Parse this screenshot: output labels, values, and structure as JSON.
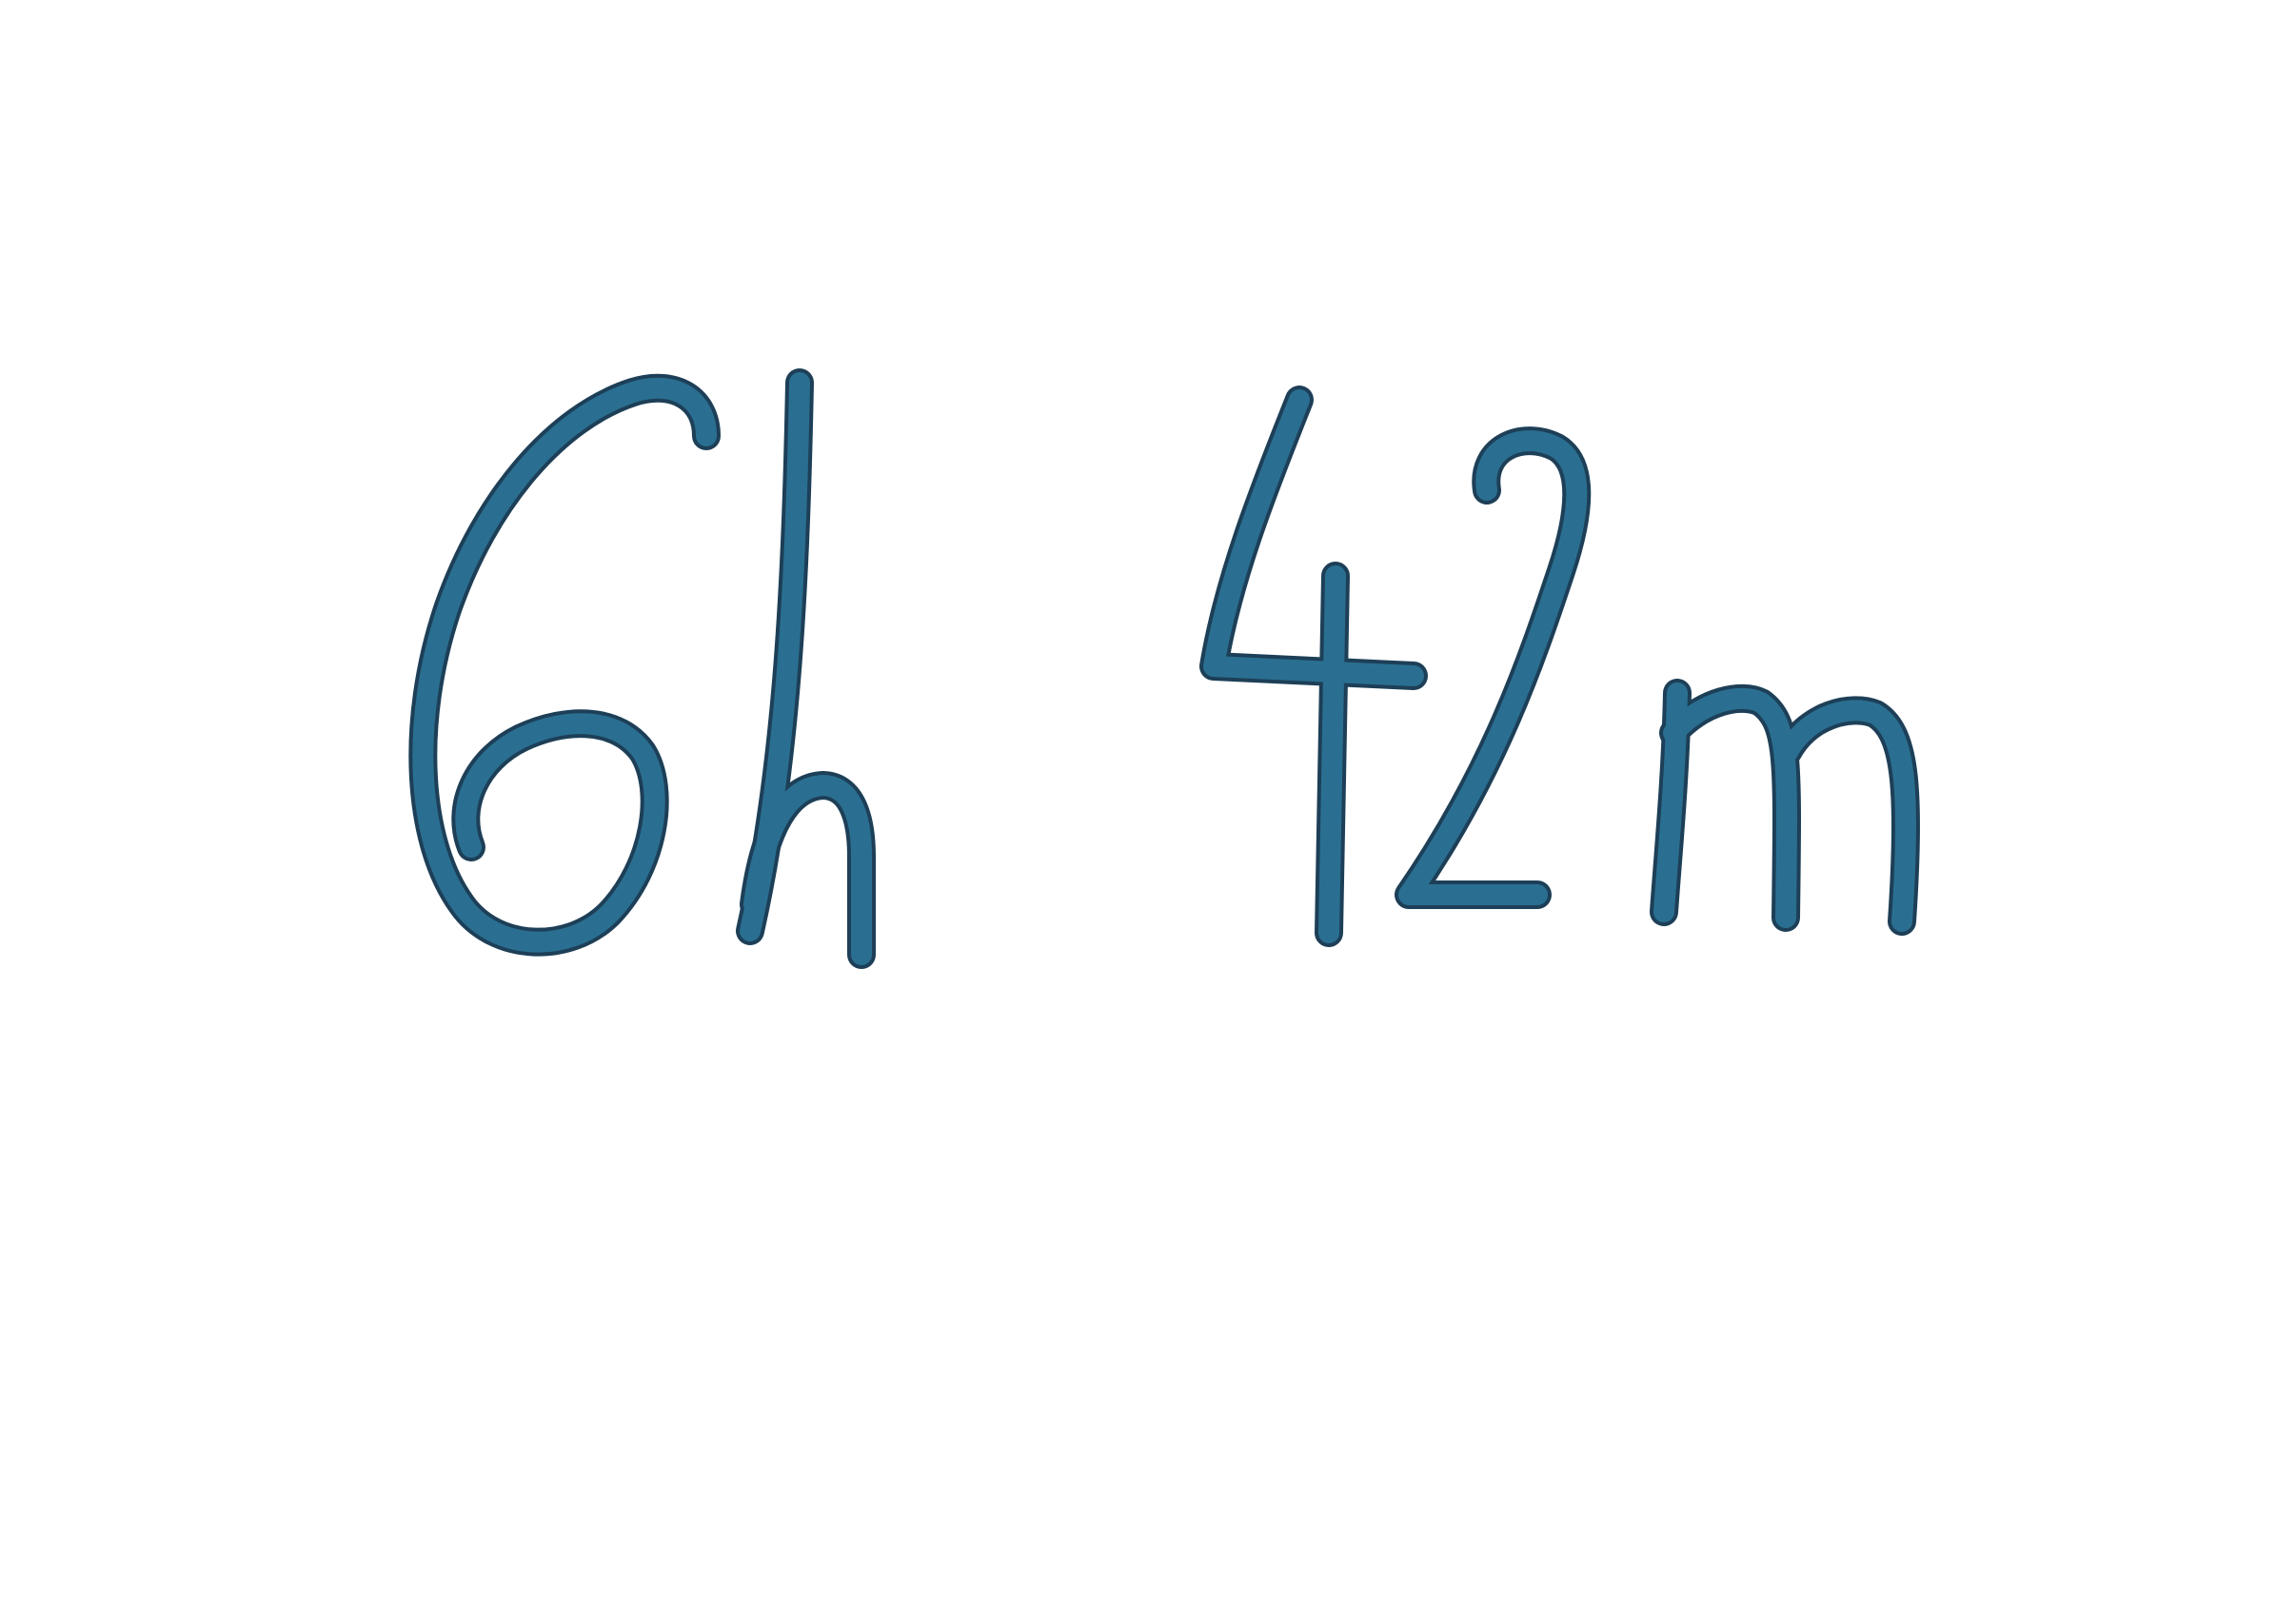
{
  "note": {
    "text": "6h 42m",
    "ink_color": "#2a6f91",
    "ink_edge_color": "#1d3f57",
    "paper_color": "#ffffff"
  }
}
